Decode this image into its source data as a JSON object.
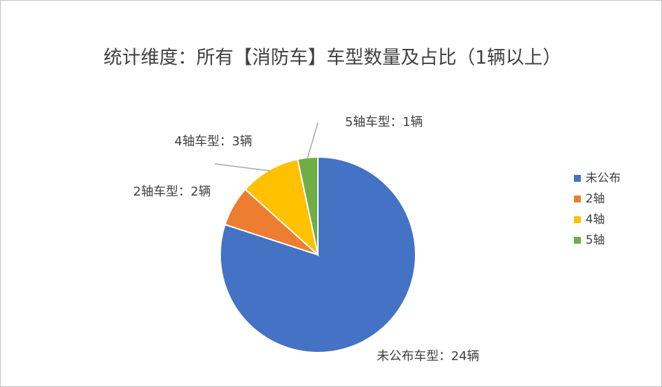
{
  "chart_data": {
    "type": "pie",
    "title": "统计维度：所有【消防车】车型数量及占比（1辆以上）",
    "categories": [
      "未公布",
      "2轴",
      "4轴",
      "5轴"
    ],
    "values": [
      24,
      2,
      3,
      1
    ],
    "value_labels": [
      "未公布车型：24辆",
      "2轴车型：2辆",
      "4轴车型：3辆",
      "5轴车型：1辆"
    ],
    "colors": [
      "#4472c4",
      "#ed7d31",
      "#ffc000",
      "#70ad47"
    ],
    "legend": "right"
  }
}
